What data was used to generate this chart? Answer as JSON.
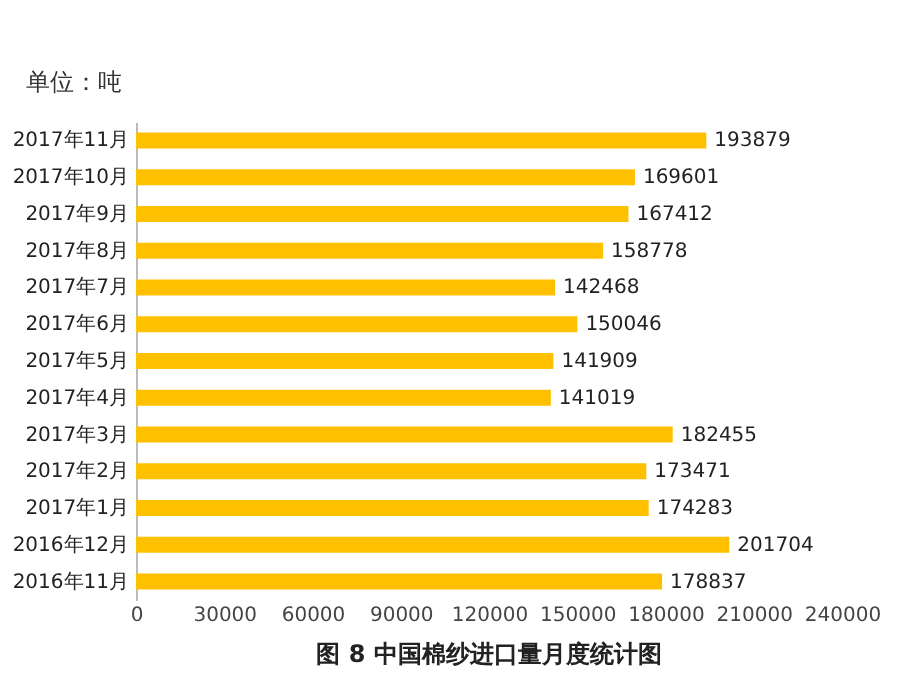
{
  "chart_data": {
    "type": "bar",
    "orientation": "horizontal",
    "title": "图 8 中国棉纱进口量月度统计图",
    "annotations": [
      "单位：吨"
    ],
    "categories": [
      "2017年11月",
      "2017年10月",
      "2017年9月",
      "2017年8月",
      "2017年7月",
      "2017年6月",
      "2017年5月",
      "2017年4月",
      "2017年3月",
      "2017年2月",
      "2017年1月",
      "2016年12月",
      "2016年11月"
    ],
    "values": [
      193879,
      169601,
      167412,
      158778,
      142468,
      150046,
      141909,
      141019,
      182455,
      173471,
      174283,
      201704,
      178837
    ],
    "color": "#ffc000",
    "xlim": [
      0,
      240000
    ],
    "xticks": [
      0,
      30000,
      60000,
      90000,
      120000,
      150000,
      180000,
      210000,
      240000
    ],
    "data_labels": true,
    "grid": false
  }
}
